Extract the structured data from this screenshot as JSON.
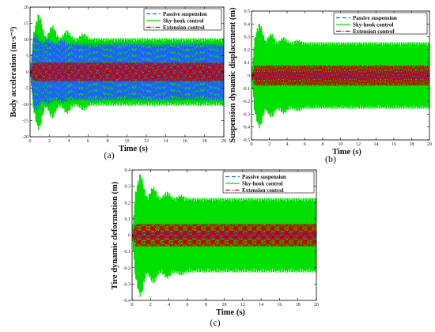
{
  "colors": {
    "passive": "#2060ff",
    "skyhook": "#00e000",
    "extension": "#c00000",
    "axis": "#000000",
    "plot_bg": "#ffffff"
  },
  "chart_data": [
    {
      "type": "line",
      "panel_label": "(a)",
      "xlabel": "Time (s)",
      "ylabel": "Body acceleration (m·s⁻²)",
      "xlim": [
        0,
        20
      ],
      "ylim": [
        -20,
        20
      ],
      "xticks": [
        0,
        2,
        4,
        6,
        8,
        10,
        12,
        14,
        16,
        18,
        20
      ],
      "yticks": [
        -20,
        -15,
        -10,
        -5,
        0,
        5,
        10,
        15,
        20
      ],
      "legend_position": "top-right",
      "series": [
        {
          "name": "Passive suspension",
          "style": "dashed",
          "envelope": {
            "steady": 9.0,
            "peaks": [
              [
                0.6,
                12
              ],
              [
                1.8,
                10.5
              ],
              [
                3.3,
                10
              ]
            ]
          }
        },
        {
          "name": "Sky-hook control",
          "style": "solid",
          "envelope": {
            "steady": 10.5,
            "peaks": [
              [
                0.9,
                18
              ],
              [
                2.3,
                14.5
              ],
              [
                3.8,
                13
              ],
              [
                5.5,
                12
              ]
            ]
          }
        },
        {
          "name": "Extension control",
          "style": "dashdot",
          "envelope": {
            "steady": 3.0,
            "peaks": []
          }
        }
      ]
    },
    {
      "type": "line",
      "panel_label": "(b)",
      "xlabel": "Time (s)",
      "ylabel": "Suspension dynamic displacement (m)",
      "xlim": [
        0,
        20
      ],
      "ylim": [
        -0.5,
        0.5
      ],
      "xticks": [
        0,
        2,
        4,
        6,
        8,
        10,
        12,
        14,
        16,
        18,
        20
      ],
      "yticks": [
        -0.5,
        -0.4,
        -0.3,
        -0.2,
        -0.1,
        0,
        0.1,
        0.2,
        0.3,
        0.4,
        0.5
      ],
      "legend_position": "top-right",
      "series": [
        {
          "name": "Passive suspension",
          "style": "dashed",
          "envelope": {
            "steady": 0.03,
            "peaks": []
          }
        },
        {
          "name": "Sky-hook control",
          "style": "solid",
          "envelope": {
            "steady": 0.26,
            "peaks": [
              [
                0.9,
                0.41
              ],
              [
                2.2,
                0.33
              ],
              [
                3.6,
                0.3
              ],
              [
                5.2,
                0.28
              ]
            ]
          }
        },
        {
          "name": "Extension control",
          "style": "dashdot",
          "envelope": {
            "steady": 0.08,
            "peaks": []
          }
        }
      ]
    },
    {
      "type": "line",
      "panel_label": "(c)",
      "xlabel": "Time (s)",
      "ylabel": "Tire dynamic deformation (m)",
      "xlim": [
        0,
        20
      ],
      "ylim": [
        -0.4,
        0.4
      ],
      "xticks": [
        0,
        2,
        4,
        6,
        8,
        10,
        12,
        14,
        16,
        18,
        20
      ],
      "yticks": [
        -0.4,
        -0.3,
        -0.2,
        -0.1,
        0,
        0.1,
        0.2,
        0.3,
        0.4
      ],
      "legend_position": "top-right",
      "series": [
        {
          "name": "Passive suspension",
          "style": "dashed",
          "envelope": {
            "steady": 0.02,
            "peaks": []
          }
        },
        {
          "name": "Sky-hook control",
          "style": "solid",
          "envelope": {
            "steady": 0.23,
            "peaks": [
              [
                0.9,
                0.38
              ],
              [
                2.3,
                0.3
              ],
              [
                3.8,
                0.27
              ],
              [
                5.3,
                0.25
              ]
            ]
          }
        },
        {
          "name": "Extension control",
          "style": "dashdot",
          "envelope": {
            "steady": 0.07,
            "peaks": []
          }
        }
      ]
    }
  ]
}
